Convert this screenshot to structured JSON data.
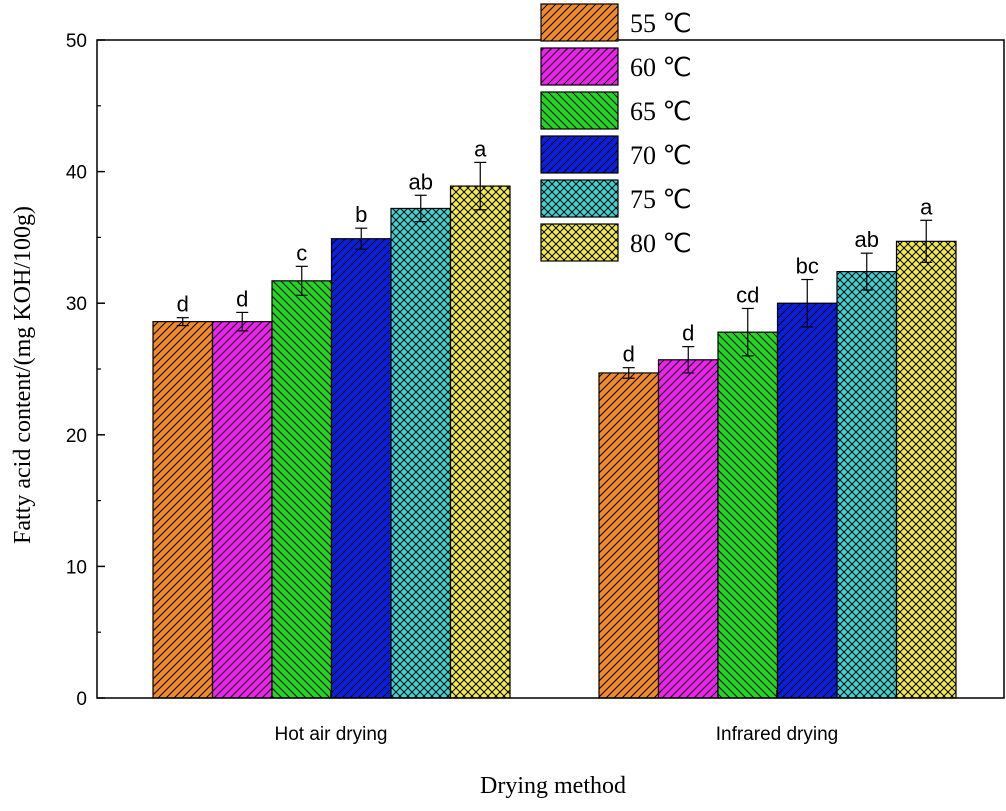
{
  "chart_data": {
    "type": "bar",
    "xlabel": "Drying method",
    "ylabel": "Fatty acid content/(mg KOH/100g)",
    "ylim": [
      0,
      50
    ],
    "yticks": [
      0,
      10,
      20,
      30,
      40,
      50
    ],
    "categories": [
      "Hot air drying",
      "Infrared drying"
    ],
    "legend_position": "top-right",
    "series": [
      {
        "name": "55 ℃",
        "color": "#ee8a2a",
        "pattern": "diagonal-left",
        "values": [
          28.6,
          24.7
        ],
        "errors": [
          0.3,
          0.4
        ],
        "letters": [
          "d",
          "d"
        ]
      },
      {
        "name": "60 ℃",
        "color": "#ee22ee",
        "pattern": "diagonal-left",
        "values": [
          28.6,
          25.7
        ],
        "errors": [
          0.7,
          1.0
        ],
        "letters": [
          "d",
          "d"
        ]
      },
      {
        "name": "65 ℃",
        "color": "#22d622",
        "pattern": "diagonal-right",
        "values": [
          31.7,
          27.8
        ],
        "errors": [
          1.1,
          1.8
        ],
        "letters": [
          "c",
          "cd"
        ]
      },
      {
        "name": "70 ℃",
        "color": "#0a1ee0",
        "pattern": "diagonal-left",
        "values": [
          34.9,
          30.0
        ],
        "errors": [
          0.8,
          1.8
        ],
        "letters": [
          "b",
          "bc"
        ]
      },
      {
        "name": "75 ℃",
        "color": "#3ad6d6",
        "pattern": "crosshatch",
        "values": [
          37.2,
          32.4
        ],
        "errors": [
          1.0,
          1.4
        ],
        "letters": [
          "ab",
          "ab"
        ]
      },
      {
        "name": "80 ℃",
        "color": "#f4ec44",
        "pattern": "crosshatch",
        "values": [
          38.9,
          34.7
        ],
        "errors": [
          1.8,
          1.6
        ],
        "letters": [
          "a",
          "a"
        ]
      }
    ]
  }
}
